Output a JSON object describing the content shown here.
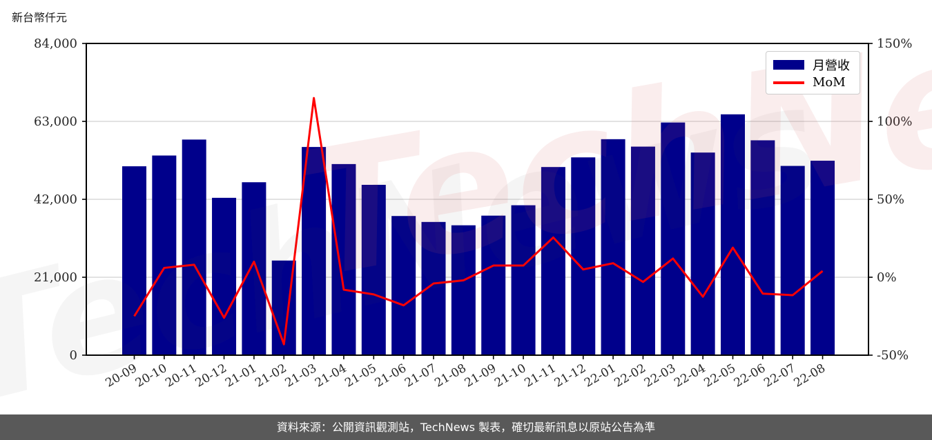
{
  "meta": {
    "footer": "資料來源：公開資訊觀測站，TechNews 製表，確切最新訊息以原站公告為準",
    "watermark_text": "TechNews"
  },
  "legend": {
    "bar_label": "月營收",
    "line_label": "MoM"
  },
  "colors": {
    "bar": "#00008b",
    "line": "#ff0000",
    "grid": "#d9d9d9",
    "axis": "#000000",
    "tick_text": "#262626",
    "footer_bg": "#595959"
  },
  "chart_data": {
    "type": "bar",
    "title": "",
    "categories": [
      "20-09",
      "20-10",
      "20-11",
      "20-12",
      "21-01",
      "21-02",
      "21-03",
      "21-04",
      "21-05",
      "21-06",
      "21-07",
      "21-08",
      "21-09",
      "21-10",
      "21-11",
      "21-12",
      "22-01",
      "22-02",
      "22-03",
      "22-04",
      "22-05",
      "22-06",
      "22-07",
      "22-08"
    ],
    "series": [
      {
        "name": "月營收",
        "type": "bar",
        "axis": "left",
        "color": "#00008b",
        "values": [
          50900,
          53800,
          58100,
          42400,
          46600,
          25500,
          56100,
          51500,
          45900,
          37500,
          35900,
          35000,
          37600,
          40400,
          50700,
          53300,
          58200,
          56200,
          62700,
          54600,
          64900,
          57900,
          51000,
          52400
        ]
      },
      {
        "name": "MoM",
        "type": "line",
        "axis": "right",
        "color": "#ff0000",
        "unit": "%",
        "values": [
          -25,
          6,
          8,
          -26,
          10,
          -43,
          115,
          -8,
          -11,
          -18,
          -4,
          -2,
          7.5,
          7.5,
          25.5,
          5,
          9,
          -3,
          12,
          -12.5,
          19,
          -10.5,
          -11.5,
          4
        ]
      }
    ],
    "left_axis": {
      "label": "新台幣仟元",
      "min": 0,
      "max": 84000,
      "tick_values": [
        84000,
        63000,
        42000,
        21000,
        0
      ],
      "tick_labels": [
        "84,000",
        "63,000",
        "42,000",
        "21,000",
        "0"
      ],
      "grid_values": [
        63000,
        42000,
        21000
      ]
    },
    "right_axis": {
      "min": -50,
      "max": 150,
      "tick_values": [
        150,
        100,
        50,
        0,
        -50
      ],
      "tick_labels": [
        "150%",
        "100%",
        "50%",
        "0%",
        "-50%"
      ]
    },
    "grid": true,
    "legend_position": "top-right"
  }
}
